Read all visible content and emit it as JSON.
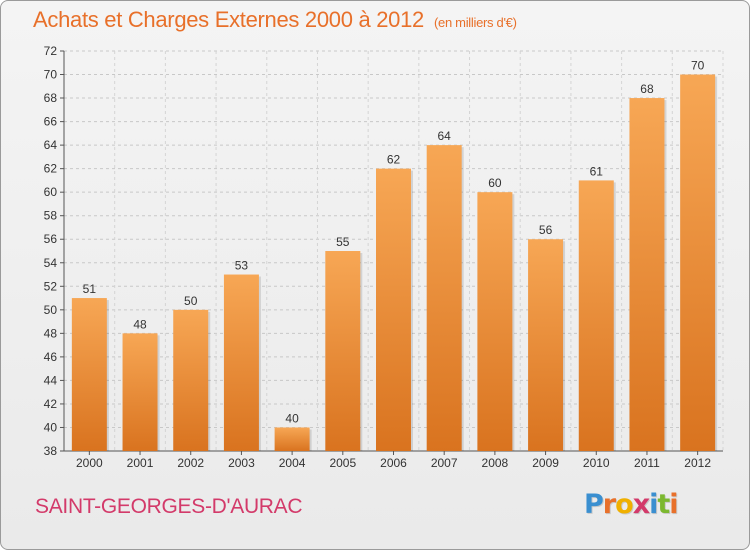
{
  "header": {
    "title": "Achats et Charges Externes 2000 à 2012",
    "subtitle": "(en milliers d'€)"
  },
  "footer": {
    "commune": "SAINT-GEORGES-D'AURAC",
    "brand": "Proxiti",
    "brand_letters": [
      {
        "char": "P",
        "color": "#3a8fd0"
      },
      {
        "char": "r",
        "color": "#e8702a"
      },
      {
        "char": "o",
        "color": "#f0b000"
      },
      {
        "char": "x",
        "color": "#d33a6a"
      },
      {
        "char": "i",
        "color": "#3a8fd0"
      },
      {
        "char": "t",
        "color": "#7cb82f"
      },
      {
        "char": "i",
        "color": "#e8702a"
      }
    ]
  },
  "colors": {
    "bar_light": "#f7a755",
    "bar_dark": "#d9731f",
    "accent": "#e8702a"
  },
  "chart_data": {
    "type": "bar",
    "categories": [
      "2000",
      "2001",
      "2002",
      "2003",
      "2004",
      "2005",
      "2006",
      "2007",
      "2008",
      "2009",
      "2010",
      "2011",
      "2012"
    ],
    "values": [
      51,
      48,
      50,
      53,
      40,
      55,
      62,
      64,
      60,
      56,
      61,
      68,
      70
    ],
    "title": "Achats et Charges Externes 2000 à 2012",
    "subtitle": "(en milliers d'€)",
    "ylim": [
      38,
      72
    ],
    "yticks": [
      38,
      40,
      42,
      44,
      46,
      48,
      50,
      52,
      54,
      56,
      58,
      60,
      62,
      64,
      66,
      68,
      70,
      72
    ],
    "grid": true,
    "data_labels": true
  }
}
